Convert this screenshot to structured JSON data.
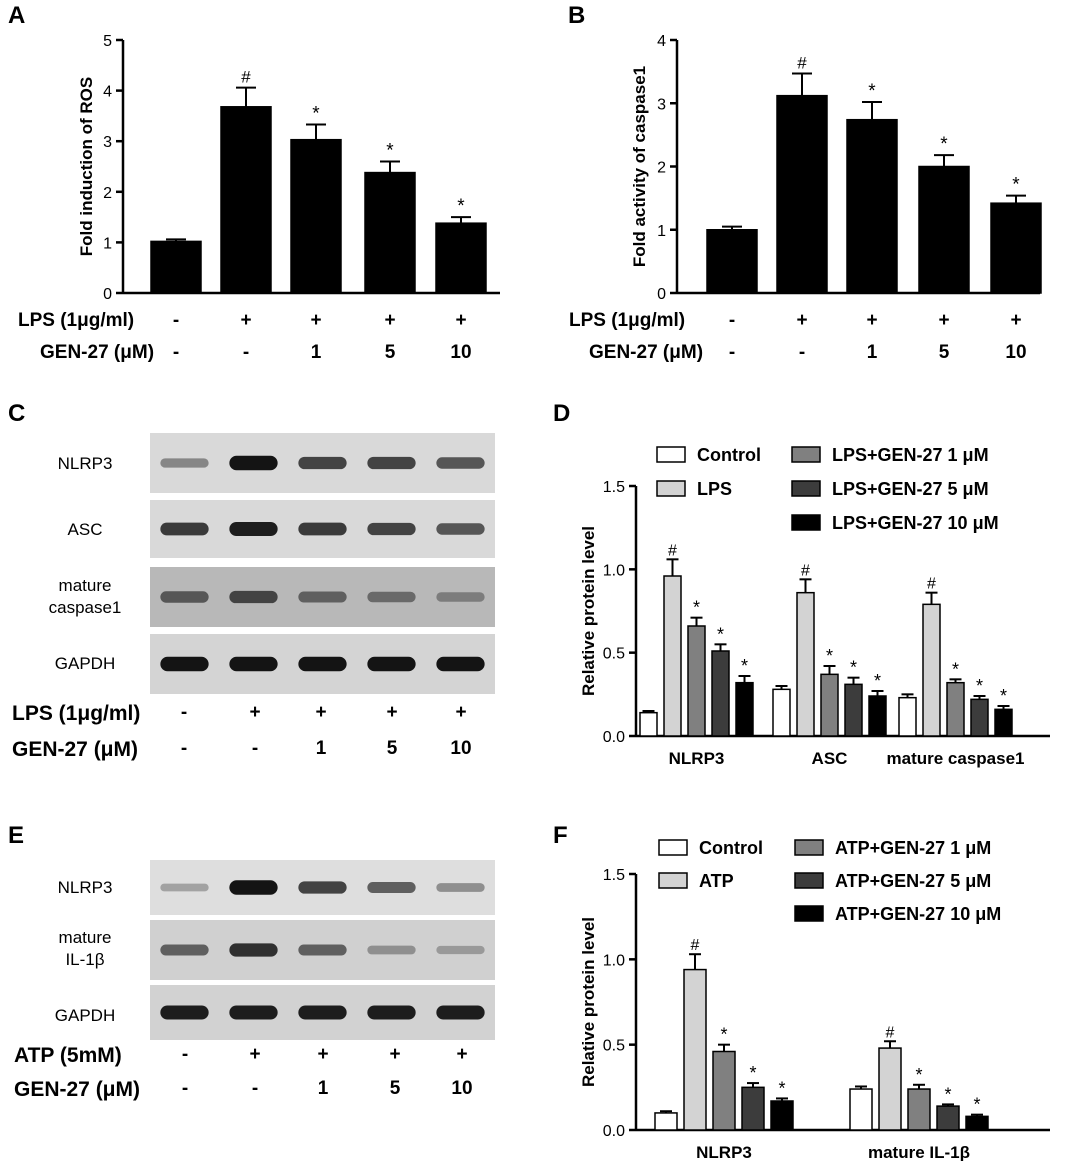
{
  "panel_labels": {
    "a": "A",
    "b": "B",
    "c": "C",
    "d": "D",
    "e": "E",
    "f": "F"
  },
  "treatments_lps": {
    "row1_label": "LPS (1μg/ml)",
    "row1_values": [
      "-",
      "+",
      "+",
      "+",
      "+"
    ],
    "row2_label": "GEN-27 (μM)",
    "row2_values": [
      "-",
      "-",
      "1",
      "5",
      "10"
    ]
  },
  "treatments_atp": {
    "row1_label": "ATP (5mM)",
    "row1_values": [
      "-",
      "+",
      "+",
      "+",
      "+"
    ],
    "row2_label": "GEN-27 (μM)",
    "row2_values": [
      "-",
      "-",
      "1",
      "5",
      "10"
    ]
  },
  "blot_c": {
    "rows": [
      {
        "label_lines": [
          "NLRP3"
        ],
        "intensity": [
          0.35,
          0.95,
          0.7,
          0.7,
          0.6
        ],
        "background": "#d9d9d9"
      },
      {
        "label_lines": [
          "ASC"
        ],
        "intensity": [
          0.75,
          0.9,
          0.75,
          0.7,
          0.6
        ],
        "background": "#d9d9d9"
      },
      {
        "label_lines": [
          "mature",
          "caspase1"
        ],
        "intensity": [
          0.6,
          0.7,
          0.55,
          0.5,
          0.4
        ],
        "background": "#b8b8b8"
      },
      {
        "label_lines": [
          "GAPDH"
        ],
        "intensity": [
          0.95,
          0.95,
          0.95,
          0.95,
          0.95
        ],
        "background": "#d4d4d4"
      }
    ]
  },
  "blot_e": {
    "rows": [
      {
        "label_lines": [
          "NLRP3"
        ],
        "intensity": [
          0.2,
          0.95,
          0.7,
          0.55,
          0.3
        ],
        "background": "#dedede"
      },
      {
        "label_lines": [
          "mature",
          "IL-1β"
        ],
        "intensity": [
          0.55,
          0.8,
          0.55,
          0.3,
          0.25
        ],
        "background": "#d0d0d0"
      },
      {
        "label_lines": [
          "GAPDH"
        ],
        "intensity": [
          0.9,
          0.9,
          0.9,
          0.9,
          0.9
        ],
        "background": "#d2d2d2"
      }
    ]
  },
  "chart_data": [
    {
      "id": "A",
      "type": "bar",
      "ylabel": "Fold induction of ROS",
      "ylim": [
        0,
        5
      ],
      "yticks": [
        "0",
        "1",
        "2",
        "3",
        "4",
        "5"
      ],
      "values": [
        1.02,
        3.68,
        3.03,
        2.38,
        1.38
      ],
      "errors": [
        0.04,
        0.38,
        0.3,
        0.22,
        0.12
      ],
      "annotations": [
        "",
        "#",
        "*",
        "*",
        "*"
      ],
      "bar_color": "#000000"
    },
    {
      "id": "B",
      "type": "bar",
      "ylabel": "Fold activity of caspase1",
      "ylim": [
        0,
        4
      ],
      "yticks": [
        "0",
        "1",
        "2",
        "3",
        "4"
      ],
      "values": [
        1.0,
        3.12,
        2.74,
        2.0,
        1.42
      ],
      "errors": [
        0.05,
        0.35,
        0.28,
        0.18,
        0.12
      ],
      "annotations": [
        "",
        "#",
        "*",
        "*",
        "*"
      ],
      "bar_color": "#000000"
    },
    {
      "id": "D",
      "type": "bar",
      "ylabel": "Relative protein level",
      "ylim": [
        0,
        1.5
      ],
      "yticks": [
        "0.0",
        "0.5",
        "1.0",
        "1.5"
      ],
      "categories": [
        "NLRP3",
        "ASC",
        "mature caspase1"
      ],
      "series": [
        {
          "name": "Control",
          "color": "#ffffff",
          "values": [
            0.14,
            0.28,
            0.23
          ],
          "errors": [
            0.01,
            0.02,
            0.02
          ],
          "annotations": [
            "",
            "",
            ""
          ]
        },
        {
          "name": "LPS",
          "color": "#d3d3d3",
          "values": [
            0.96,
            0.86,
            0.79
          ],
          "errors": [
            0.1,
            0.08,
            0.07
          ],
          "annotations": [
            "#",
            "#",
            "#"
          ]
        },
        {
          "name": "LPS+GEN-27 1 μM",
          "color": "#808080",
          "values": [
            0.66,
            0.37,
            0.32
          ],
          "errors": [
            0.05,
            0.05,
            0.02
          ],
          "annotations": [
            "*",
            "*",
            "*"
          ]
        },
        {
          "name": "LPS+GEN-27 5 μM",
          "color": "#3c3c3c",
          "values": [
            0.51,
            0.31,
            0.22
          ],
          "errors": [
            0.04,
            0.04,
            0.02
          ],
          "annotations": [
            "*",
            "*",
            "*"
          ]
        },
        {
          "name": "LPS+GEN-27 10 μM",
          "color": "#000000",
          "values": [
            0.32,
            0.24,
            0.16
          ],
          "errors": [
            0.04,
            0.03,
            0.02
          ],
          "annotations": [
            "*",
            "*",
            "*"
          ]
        }
      ]
    },
    {
      "id": "F",
      "type": "bar",
      "ylabel": "Relative protein level",
      "ylim": [
        0,
        1.5
      ],
      "yticks": [
        "0.0",
        "0.5",
        "1.0",
        "1.5"
      ],
      "categories": [
        "NLRP3",
        "mature IL-1β"
      ],
      "series": [
        {
          "name": "Control",
          "color": "#ffffff",
          "values": [
            0.1,
            0.24
          ],
          "errors": [
            0.01,
            0.015
          ],
          "annotations": [
            "",
            ""
          ]
        },
        {
          "name": "ATP",
          "color": "#d3d3d3",
          "values": [
            0.94,
            0.48
          ],
          "errors": [
            0.09,
            0.04
          ],
          "annotations": [
            "#",
            "#"
          ]
        },
        {
          "name": "ATP+GEN-27 1 μM",
          "color": "#808080",
          "values": [
            0.46,
            0.24
          ],
          "errors": [
            0.04,
            0.025
          ],
          "annotations": [
            "*",
            "*"
          ]
        },
        {
          "name": "ATP+GEN-27 5 μM",
          "color": "#3c3c3c",
          "values": [
            0.25,
            0.14
          ],
          "errors": [
            0.025,
            0.01
          ],
          "annotations": [
            "*",
            "*"
          ]
        },
        {
          "name": "ATP+GEN-27 10 μM",
          "color": "#000000",
          "values": [
            0.17,
            0.08
          ],
          "errors": [
            0.015,
            0.01
          ],
          "annotations": [
            "*",
            "*"
          ]
        }
      ]
    }
  ]
}
